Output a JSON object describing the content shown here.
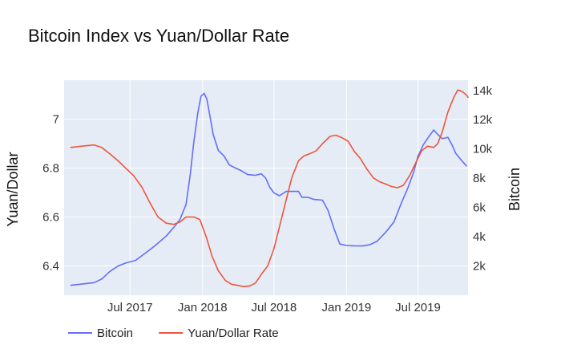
{
  "chart_data": {
    "type": "line",
    "title": "Bitcoin Index vs Yuan/Dollar Rate",
    "xlabel": "",
    "y_left_label": "Yuan/Dollar",
    "y_right_label": "Bitcoin",
    "x_range": [
      "2017-01-15",
      "2019-11-05"
    ],
    "y_left_range": [
      6.28,
      7.16
    ],
    "y_right_range": [
      0,
      14700
    ],
    "x_ticks": [
      {
        "date": "2017-07-01",
        "label": "Jul 2017"
      },
      {
        "date": "2018-01-01",
        "label": "Jan 2018"
      },
      {
        "date": "2018-07-01",
        "label": "Jul 2018"
      },
      {
        "date": "2019-01-01",
        "label": "Jan 2019"
      },
      {
        "date": "2019-07-01",
        "label": "Jul 2019"
      }
    ],
    "y_left_ticks": [
      {
        "value": 6.4,
        "label": "6.4"
      },
      {
        "value": 6.6,
        "label": "6.6"
      },
      {
        "value": 6.8,
        "label": "6.8"
      },
      {
        "value": 7.0,
        "label": "7"
      }
    ],
    "y_right_ticks": [
      {
        "value": 2000,
        "label": "2k"
      },
      {
        "value": 4000,
        "label": "4k"
      },
      {
        "value": 6000,
        "label": "6k"
      },
      {
        "value": 8000,
        "label": "8k"
      },
      {
        "value": 10000,
        "label": "10k"
      },
      {
        "value": 12000,
        "label": "12k"
      },
      {
        "value": 14000,
        "label": "14k"
      }
    ],
    "grid": true,
    "legend_position": "bottom-left",
    "series": [
      {
        "name": "Bitcoin",
        "axis": "right",
        "color": "#636efa",
        "points": [
          [
            "2017-02-01",
            680
          ],
          [
            "2017-03-01",
            760
          ],
          [
            "2017-04-01",
            860
          ],
          [
            "2017-04-20",
            1100
          ],
          [
            "2017-05-10",
            1600
          ],
          [
            "2017-06-01",
            2000
          ],
          [
            "2017-06-20",
            2200
          ],
          [
            "2017-07-15",
            2380
          ],
          [
            "2017-08-10",
            2900
          ],
          [
            "2017-09-01",
            3350
          ],
          [
            "2017-10-01",
            4050
          ],
          [
            "2017-10-25",
            4800
          ],
          [
            "2017-11-05",
            5200
          ],
          [
            "2017-11-20",
            6200
          ],
          [
            "2017-12-01",
            8300
          ],
          [
            "2017-12-10",
            10500
          ],
          [
            "2017-12-20",
            12500
          ],
          [
            "2017-12-28",
            13600
          ],
          [
            "2018-01-05",
            13800
          ],
          [
            "2018-01-12",
            13400
          ],
          [
            "2018-01-20",
            12200
          ],
          [
            "2018-01-28",
            11000
          ],
          [
            "2018-02-10",
            9900
          ],
          [
            "2018-02-25",
            9500
          ],
          [
            "2018-03-10",
            8900
          ],
          [
            "2018-03-25",
            8700
          ],
          [
            "2018-04-10",
            8500
          ],
          [
            "2018-04-25",
            8250
          ],
          [
            "2018-05-15",
            8200
          ],
          [
            "2018-05-30",
            8300
          ],
          [
            "2018-06-10",
            8000
          ],
          [
            "2018-06-20",
            7400
          ],
          [
            "2018-07-01",
            7000
          ],
          [
            "2018-07-15",
            6800
          ],
          [
            "2018-08-01",
            7100
          ],
          [
            "2018-08-15",
            7100
          ],
          [
            "2018-09-01",
            7100
          ],
          [
            "2018-09-10",
            6700
          ],
          [
            "2018-09-25",
            6700
          ],
          [
            "2018-10-10",
            6550
          ],
          [
            "2018-11-01",
            6500
          ],
          [
            "2018-11-15",
            5800
          ],
          [
            "2018-12-01",
            4500
          ],
          [
            "2018-12-15",
            3500
          ],
          [
            "2019-01-01",
            3400
          ],
          [
            "2019-01-20",
            3380
          ],
          [
            "2019-02-10",
            3370
          ],
          [
            "2019-03-01",
            3450
          ],
          [
            "2019-03-20",
            3700
          ],
          [
            "2019-04-10",
            4300
          ],
          [
            "2019-05-01",
            5000
          ],
          [
            "2019-05-20",
            6300
          ],
          [
            "2019-06-05",
            7300
          ],
          [
            "2019-06-20",
            8400
          ],
          [
            "2019-07-01",
            9500
          ],
          [
            "2019-07-15",
            10300
          ],
          [
            "2019-07-30",
            10900
          ],
          [
            "2019-08-10",
            11300
          ],
          [
            "2019-08-20",
            11000
          ],
          [
            "2019-09-01",
            10700
          ],
          [
            "2019-09-15",
            10800
          ],
          [
            "2019-09-25",
            10300
          ],
          [
            "2019-10-05",
            9700
          ],
          [
            "2019-10-20",
            9200
          ],
          [
            "2019-11-01",
            8850
          ]
        ]
      },
      {
        "name": "Yuan/Dollar Rate",
        "axis": "left",
        "color": "#ef553b",
        "points": [
          [
            "2017-02-01",
            6.885
          ],
          [
            "2017-03-01",
            6.89
          ],
          [
            "2017-04-01",
            6.895
          ],
          [
            "2017-04-20",
            6.885
          ],
          [
            "2017-05-10",
            6.86
          ],
          [
            "2017-06-01",
            6.83
          ],
          [
            "2017-06-20",
            6.8
          ],
          [
            "2017-07-10",
            6.77
          ],
          [
            "2017-08-01",
            6.72
          ],
          [
            "2017-08-20",
            6.66
          ],
          [
            "2017-09-10",
            6.6
          ],
          [
            "2017-10-01",
            6.575
          ],
          [
            "2017-10-20",
            6.57
          ],
          [
            "2017-11-05",
            6.58
          ],
          [
            "2017-11-20",
            6.6
          ],
          [
            "2017-12-10",
            6.6
          ],
          [
            "2017-12-25",
            6.59
          ],
          [
            "2018-01-10",
            6.52
          ],
          [
            "2018-01-25",
            6.44
          ],
          [
            "2018-02-10",
            6.38
          ],
          [
            "2018-02-28",
            6.34
          ],
          [
            "2018-03-15",
            6.325
          ],
          [
            "2018-04-01",
            6.32
          ],
          [
            "2018-04-15",
            6.315
          ],
          [
            "2018-05-01",
            6.318
          ],
          [
            "2018-05-15",
            6.33
          ],
          [
            "2018-06-01",
            6.37
          ],
          [
            "2018-06-15",
            6.4
          ],
          [
            "2018-07-01",
            6.47
          ],
          [
            "2018-07-15",
            6.56
          ],
          [
            "2018-08-01",
            6.67
          ],
          [
            "2018-08-15",
            6.76
          ],
          [
            "2018-09-01",
            6.83
          ],
          [
            "2018-09-15",
            6.85
          ],
          [
            "2018-10-01",
            6.86
          ],
          [
            "2018-10-15",
            6.87
          ],
          [
            "2018-11-01",
            6.9
          ],
          [
            "2018-11-20",
            6.93
          ],
          [
            "2018-12-05",
            6.935
          ],
          [
            "2018-12-20",
            6.925
          ],
          [
            "2019-01-05",
            6.91
          ],
          [
            "2019-01-20",
            6.87
          ],
          [
            "2019-02-05",
            6.84
          ],
          [
            "2019-02-20",
            6.8
          ],
          [
            "2019-03-10",
            6.76
          ],
          [
            "2019-03-25",
            6.745
          ],
          [
            "2019-04-10",
            6.735
          ],
          [
            "2019-04-25",
            6.725
          ],
          [
            "2019-05-10",
            6.72
          ],
          [
            "2019-05-25",
            6.73
          ],
          [
            "2019-06-10",
            6.77
          ],
          [
            "2019-06-25",
            6.82
          ],
          [
            "2019-07-10",
            6.87
          ],
          [
            "2019-07-25",
            6.89
          ],
          [
            "2019-08-10",
            6.885
          ],
          [
            "2019-08-20",
            6.9
          ],
          [
            "2019-09-01",
            6.95
          ],
          [
            "2019-09-15",
            7.03
          ],
          [
            "2019-09-30",
            7.09
          ],
          [
            "2019-10-10",
            7.12
          ],
          [
            "2019-10-20",
            7.115
          ],
          [
            "2019-11-01",
            7.1
          ],
          [
            "2019-11-05",
            7.09
          ]
        ]
      }
    ]
  },
  "colors": {
    "plot_background": "#e5ecf6",
    "grid": "#ffffff",
    "bitcoin_line": "#636efa",
    "yuan_line": "#ef553b"
  }
}
